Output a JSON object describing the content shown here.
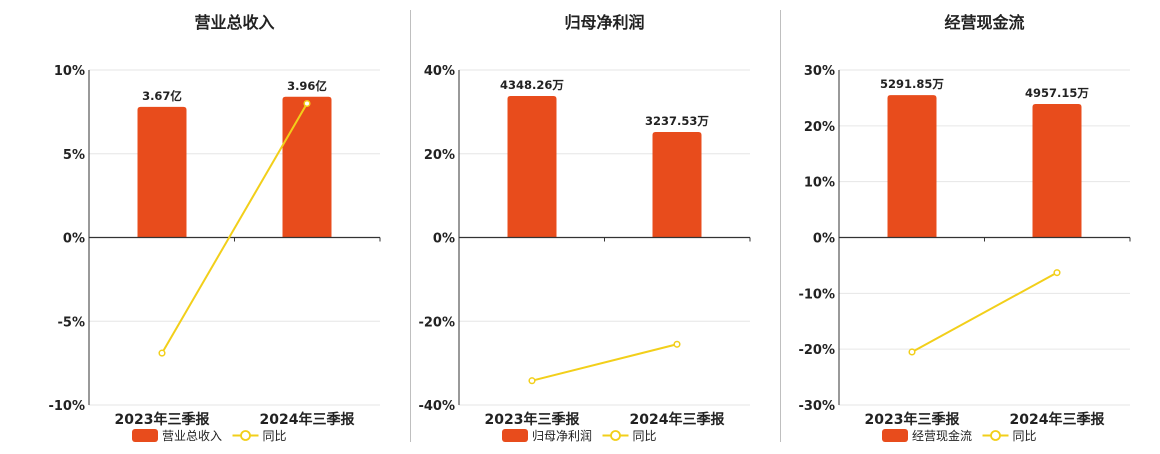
{
  "colors": {
    "bar": "#E84C1C",
    "line": "#F2CF1A",
    "grid": "#e6e6e6",
    "axis": "#333333",
    "divider": "#bfbfbf"
  },
  "chart_data": [
    {
      "type": "bar",
      "title": "营业总收入",
      "categories": [
        "2023年三季报",
        "2024年三季报"
      ],
      "series": [
        {
          "name": "营业总收入",
          "type": "bar",
          "values": [
            7.8,
            8.4
          ],
          "labels": [
            "3.67亿",
            "3.96亿"
          ]
        },
        {
          "name": "同比",
          "type": "line",
          "values": [
            -6.9,
            8.0
          ]
        }
      ],
      "ylim": [
        -10,
        10
      ],
      "yticks": [
        10,
        5,
        0,
        -5,
        -10
      ],
      "ytick_labels": [
        "10%",
        "5%",
        "0%",
        "-5%",
        "-10%"
      ],
      "grid": true,
      "legend": "bottom"
    },
    {
      "type": "bar",
      "title": "归母净利润",
      "categories": [
        "2023年三季报",
        "2024年三季报"
      ],
      "series": [
        {
          "name": "归母净利润",
          "type": "bar",
          "values": [
            33.8,
            25.2
          ],
          "labels": [
            "4348.26万",
            "3237.53万"
          ]
        },
        {
          "name": "同比",
          "type": "line",
          "values": [
            -34.2,
            -25.5
          ]
        }
      ],
      "ylim": [
        -40,
        40
      ],
      "yticks": [
        40,
        20,
        0,
        -20,
        -40
      ],
      "ytick_labels": [
        "40%",
        "20%",
        "0%",
        "-20%",
        "-40%"
      ],
      "grid": true,
      "legend": "bottom"
    },
    {
      "type": "bar",
      "title": "经营现金流",
      "categories": [
        "2023年三季报",
        "2024年三季报"
      ],
      "series": [
        {
          "name": "经营现金流",
          "type": "bar",
          "values": [
            25.5,
            23.9
          ],
          "labels": [
            "5291.85万",
            "4957.15万"
          ]
        },
        {
          "name": "同比",
          "type": "line",
          "values": [
            -20.5,
            -6.3
          ]
        }
      ],
      "ylim": [
        -30,
        30
      ],
      "yticks": [
        30,
        20,
        10,
        0,
        -10,
        -20,
        -30
      ],
      "ytick_labels": [
        "30%",
        "20%",
        "10%",
        "0%",
        "-10%",
        "-20%",
        "-30%"
      ],
      "grid": true,
      "legend": "bottom"
    }
  ]
}
